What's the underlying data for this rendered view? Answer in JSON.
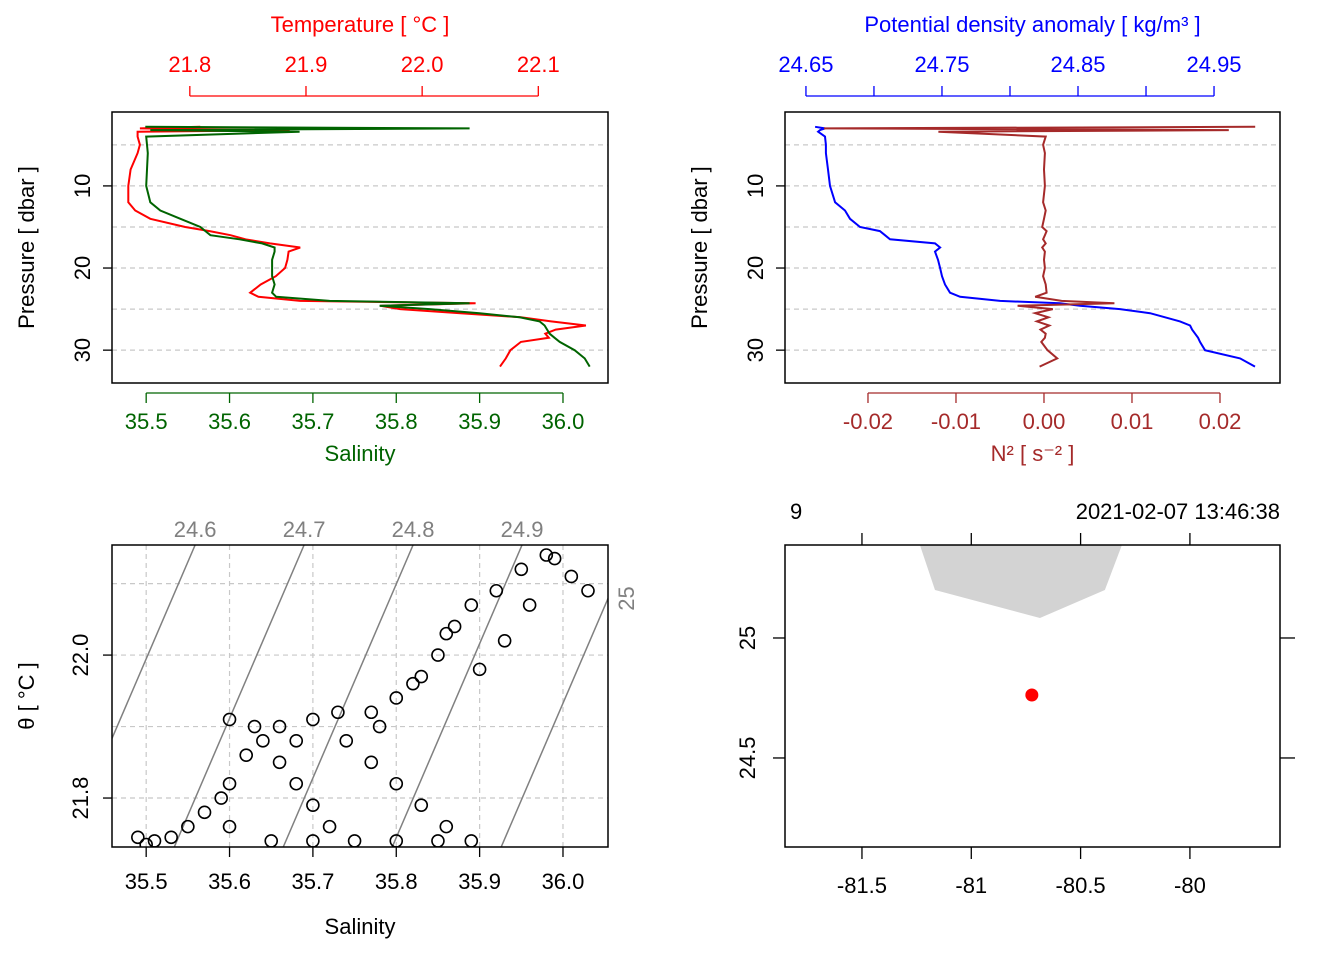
{
  "chart_data": [
    {
      "type": "profile",
      "ylabel": "Pressure [ dbar ]",
      "ylim": [
        34.0,
        1.0
      ],
      "yticks": [
        10,
        20,
        30
      ],
      "ygrid": [
        5,
        10,
        15,
        20,
        25,
        30
      ],
      "pressure": [
        2.8,
        3.0,
        3.2,
        3.4,
        4,
        5,
        6,
        8,
        10,
        12,
        13,
        14,
        15,
        15.5,
        16,
        16.5,
        17,
        17.5,
        18,
        19,
        20,
        21,
        22,
        23,
        23.5,
        24,
        24.3,
        24.6,
        25,
        25.5,
        26,
        26.5,
        27,
        27.5,
        28,
        28.5,
        29,
        30,
        31,
        32
      ],
      "x": {
        "label": "Salinity",
        "color": "#006400",
        "lim": [
          35.459,
          36.054
        ],
        "ticks": [
          35.5,
          35.6,
          35.7,
          35.8,
          35.9,
          {
            "value": 36,
            "label": "36.0"
          }
        ],
        "values": [
          35.499,
          35.888,
          35.505,
          35.684,
          35.5,
          35.501,
          35.502,
          35.501,
          35.5,
          35.505,
          35.517,
          35.541,
          35.565,
          35.571,
          35.577,
          35.612,
          35.639,
          35.654,
          35.654,
          35.651,
          35.651,
          35.651,
          35.654,
          35.651,
          35.656,
          35.72,
          35.888,
          35.78,
          35.84,
          35.9,
          35.948,
          35.972,
          35.978,
          35.981,
          35.984,
          35.99,
          35.996,
          36.014,
          36.026,
          36.032
        ]
      },
      "x2": {
        "label": "Temperature [ °C ]",
        "color": "#ff0000",
        "lim": [
          21.733,
          22.16
        ],
        "ticks": [
          21.8,
          21.9,
          {
            "value": 22,
            "label": "22.0"
          },
          22.1
        ],
        "values": [
          21.809,
          21.757,
          21.886,
          21.755,
          21.755,
          21.757,
          21.755,
          21.749,
          21.747,
          21.747,
          21.753,
          21.766,
          21.796,
          21.817,
          21.835,
          21.848,
          21.869,
          21.895,
          21.885,
          21.884,
          21.882,
          21.874,
          21.861,
          21.852,
          21.859,
          21.895,
          22.046,
          21.964,
          21.981,
          22.033,
          22.085,
          22.111,
          22.141,
          22.115,
          22.106,
          22.109,
          22.085,
          22.076,
          22.072,
          22.067
        ]
      }
    },
    {
      "type": "profile",
      "ylabel": "Pressure [ dbar ]",
      "ylim": [
        34.0,
        1.0
      ],
      "yticks": [
        10,
        20,
        30
      ],
      "ygrid": [
        5,
        10,
        15,
        20,
        25,
        30
      ],
      "pressure": [
        2.8,
        3.0,
        3.2,
        3.4,
        4,
        5,
        6,
        8,
        10,
        12,
        13,
        14,
        15,
        15.5,
        16,
        16.5,
        17,
        17.5,
        18,
        19,
        20,
        21,
        22,
        23,
        23.5,
        24,
        24.3,
        24.6,
        25,
        25.5,
        26,
        26.5,
        27,
        27.5,
        28,
        28.5,
        29,
        30,
        31,
        32
      ],
      "x": {
        "label": "N² [ s⁻² ]",
        "color": "#a52a2a",
        "lim": [
          -0.02943,
          0.02682
        ],
        "ticks": [
          -0.02,
          -0.01,
          {
            "value": 0,
            "label": "0.00"
          },
          0.01,
          0.02
        ],
        "values": [
          0.024,
          -0.025,
          0.021,
          -0.012,
          0.0002,
          -0.0001,
          0.0001,
          0,
          0.0001,
          -0.0001,
          0.0002,
          0,
          -0.0002,
          0.0003,
          0.0001,
          -0.0001,
          0.0002,
          -0.0002,
          0.0001,
          0,
          0.0001,
          -0.0001,
          0.0002,
          0.0003,
          -0.001,
          0.002,
          0.008,
          -0.003,
          0.001,
          -0.001,
          0.0005,
          -0.0008,
          0.0006,
          -0.0004,
          0.0002,
          0.0001,
          -0.0003,
          0.0004,
          0.0015,
          -0.0005
        ]
      },
      "x2": {
        "label": "Potential density anomaly [ kg/m³ ]",
        "color": "#0000ff",
        "lim": [
          24.6346,
          24.9985
        ],
        "ticks": [
          24.65,
          24.75,
          24.85,
          24.95
        ],
        "minor": [
          24.7,
          24.8,
          24.9
        ],
        "values": [
          24.6567,
          24.664,
          24.6603,
          24.6589,
          24.664,
          24.6647,
          24.6647,
          24.6662,
          24.6677,
          24.6714,
          24.6787,
          24.6824,
          24.6897,
          24.7044,
          24.7081,
          24.7118,
          24.7449,
          24.7486,
          24.7449,
          24.7471,
          24.7486,
          24.75,
          24.7522,
          24.7559,
          24.7633,
          24.7927,
          24.8368,
          24.8515,
          24.8809,
          24.903,
          24.914,
          24.925,
          24.9324,
          24.9339,
          24.9361,
          24.9383,
          24.9397,
          24.9434,
          24.9692,
          24.9801
        ]
      }
    },
    {
      "type": "ts",
      "xlabel": "Salinity",
      "ylabel": "θ [ °C ]",
      "xlim": [
        35.459,
        36.054
      ],
      "xticks": [
        35.5,
        35.6,
        35.7,
        35.8,
        35.9,
        {
          "value": 36,
          "label": "36.0"
        }
      ],
      "ylim": [
        21.7315,
        22.154
      ],
      "yticks": [
        21.8,
        {
          "value": 22,
          "label": "22.0"
        }
      ],
      "ygrid": [
        21.8,
        21.9,
        22,
        22.1
      ],
      "grid": true,
      "isopycnals": {
        "levels": [
          24.6,
          24.7,
          24.8,
          24.9,
          25
        ],
        "color": "#808080"
      },
      "color": "#000000",
      "salinity": [
        35.49,
        35.5,
        35.51,
        35.53,
        35.55,
        35.57,
        35.59,
        35.6,
        35.62,
        35.64,
        35.66,
        35.6,
        35.63,
        35.66,
        35.68,
        35.7,
        35.72,
        35.7,
        35.75,
        35.8,
        35.85,
        35.89,
        35.86,
        35.83,
        35.8,
        35.77,
        35.74,
        35.7,
        35.73,
        35.77,
        35.8,
        35.83,
        35.85,
        35.87,
        35.89,
        35.92,
        35.95,
        35.98,
        35.99,
        36.01,
        36.03,
        35.86,
        35.82,
        35.78,
        35.9,
        35.93,
        35.96,
        35.65,
        35.6,
        35.68
      ],
      "theta": [
        21.745,
        21.735,
        21.74,
        21.745,
        21.76,
        21.78,
        21.8,
        21.82,
        21.86,
        21.88,
        21.9,
        21.91,
        21.9,
        21.85,
        21.82,
        21.79,
        21.76,
        21.74,
        21.74,
        21.74,
        21.74,
        21.74,
        21.76,
        21.79,
        21.82,
        21.85,
        21.88,
        21.91,
        21.92,
        21.92,
        21.94,
        21.97,
        22.0,
        22.04,
        22.07,
        22.09,
        22.12,
        22.14,
        22.135,
        22.11,
        22.09,
        22.03,
        21.96,
        21.9,
        21.98,
        22.02,
        22.07,
        21.74,
        21.76,
        21.88
      ]
    },
    {
      "type": "map",
      "station": "9",
      "time": "2021-02-07 13:46:38",
      "lonlim": [
        -81.852,
        -79.588
      ],
      "lonticks": [
        -81.5,
        -81,
        -80.5,
        -80
      ],
      "latlim": [
        24.129,
        25.3875
      ],
      "latticks": [
        24.5,
        25
      ],
      "coastline": {
        "color": "#d3d3d3",
        "lon": [
          -81.235,
          -81.166,
          -80.686,
          -80.389,
          -80.311
        ],
        "lat": [
          25.3875,
          25.2,
          25.0833,
          25.2,
          25.3875
        ]
      },
      "point": {
        "color": "#ff0000",
        "lon": -80.723,
        "lat": 24.7625
      }
    }
  ]
}
